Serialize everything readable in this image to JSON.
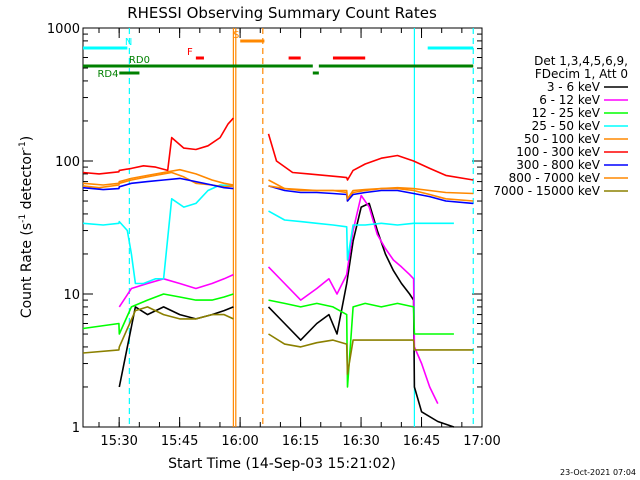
{
  "chart_data": {
    "type": "line",
    "title": "RHESSI Observing Summary Count Rates",
    "xlabel": "Start Time (14-Sep-03 15:21:02)",
    "ylabel_parts": [
      "Count Rate (s",
      "-1",
      " detector",
      "-1",
      ")"
    ],
    "x_range_minutes": [
      0,
      98.97
    ],
    "x_ticks": [
      {
        "label": "15:30",
        "t": 8.97
      },
      {
        "label": "15:45",
        "t": 23.97
      },
      {
        "label": "16:00",
        "t": 38.97
      },
      {
        "label": "16:15",
        "t": 53.97
      },
      {
        "label": "16:30",
        "t": 68.97
      },
      {
        "label": "16:45",
        "t": 83.97
      },
      {
        "label": "17:00",
        "t": 98.97
      }
    ],
    "y_scale": "log",
    "ylim": [
      1,
      1000
    ],
    "y_ticks": [
      {
        "label": "1",
        "v": 1
      },
      {
        "label": "10",
        "v": 10
      },
      {
        "label": "100",
        "v": 100
      },
      {
        "label": "1000",
        "v": 1000
      }
    ],
    "legend_header": [
      "Det 1,3,4,5,6,9,",
      "FDecim 1, Att 0"
    ],
    "series": [
      {
        "name": "3 - 6 keV",
        "color": "#000000",
        "x": [
          0,
          8.9,
          9,
          13,
          16,
          20,
          24,
          28,
          32,
          35,
          37.3,
          37.5,
          45.5,
          46,
          50,
          54,
          58,
          61,
          63,
          65.4,
          67,
          69,
          71,
          73,
          75,
          77,
          79,
          81,
          82,
          82.2,
          84,
          88,
          92,
          96.8
        ],
        "y": [
          null,
          null,
          2,
          8,
          7,
          8,
          7,
          6.5,
          7,
          7.5,
          8,
          null,
          null,
          8,
          6,
          4.5,
          6,
          7,
          5,
          12,
          25,
          45,
          48,
          30,
          20,
          15,
          12,
          10,
          9,
          2,
          1.3,
          1.1,
          1,
          null
        ]
      },
      {
        "name": "6 - 12 keV",
        "color": "#ff00ff",
        "x": [
          0,
          8.9,
          9,
          12,
          16,
          20,
          24,
          28,
          32,
          35,
          37.3,
          37.5,
          45.5,
          46,
          50,
          54,
          58,
          61,
          63,
          65.4,
          67,
          69,
          71,
          73,
          75,
          77,
          79,
          81,
          82,
          82.2,
          84,
          86,
          88,
          96.8
        ],
        "y": [
          null,
          null,
          8,
          11,
          12,
          13,
          12,
          11,
          12,
          13,
          14,
          null,
          null,
          16,
          12,
          9,
          11,
          13,
          10,
          14,
          30,
          55,
          45,
          28,
          22,
          18,
          16,
          14,
          13,
          4,
          3,
          2,
          1.5,
          null
        ]
      },
      {
        "name": "12 - 25 keV",
        "color": "#00ff00",
        "x": [
          0,
          8.9,
          9,
          12,
          16,
          20,
          24,
          28,
          32,
          35,
          37.3,
          37.5,
          45.5,
          46,
          50,
          54,
          58,
          62,
          65.4,
          65.6,
          67,
          70,
          74,
          78,
          82,
          82.2,
          84,
          88,
          92,
          96.8
        ],
        "y": [
          5.5,
          6,
          5,
          8,
          9,
          10,
          9.5,
          9,
          9,
          9.5,
          10,
          null,
          null,
          9,
          8.5,
          8,
          8.5,
          8,
          7,
          2,
          8,
          8.5,
          8,
          8.5,
          8,
          5,
          5,
          5,
          5,
          null
        ]
      },
      {
        "name": "25 - 50 keV",
        "color": "#00ffff",
        "x": [
          0,
          5,
          8.9,
          9,
          11,
          12,
          13,
          14,
          15,
          18,
          20,
          22,
          25,
          28,
          31,
          34,
          37.3,
          37.5,
          45.5,
          46,
          50,
          54,
          58,
          62,
          65.4,
          65.6,
          67,
          70,
          74,
          78,
          82,
          82.2,
          84,
          88,
          92,
          96.8
        ],
        "y": [
          34,
          33,
          34,
          35,
          30,
          20,
          12,
          12,
          12,
          13,
          13,
          52,
          45,
          48,
          60,
          66,
          65,
          null,
          null,
          42,
          36,
          35,
          34,
          33,
          32,
          18,
          33,
          33,
          34,
          33,
          34,
          34,
          34,
          34,
          34,
          null
        ]
      },
      {
        "name": "50 - 100 keV",
        "color": "#ff8800",
        "x": [
          0,
          4,
          8.9,
          9,
          12,
          15,
          18,
          22,
          25,
          28,
          32,
          35,
          37.3,
          37.5,
          45.5,
          46,
          50,
          54,
          58,
          62,
          65.4,
          65.6,
          67,
          70,
          74,
          78,
          82,
          86,
          90,
          96.8
        ],
        "y": [
          65,
          63,
          66,
          68,
          72,
          75,
          78,
          82,
          76,
          68,
          66,
          64,
          65,
          null,
          null,
          72,
          62,
          60,
          60,
          60,
          58,
          50,
          58,
          60,
          62,
          63,
          62,
          60,
          58,
          57
        ]
      },
      {
        "name": "100 - 300 keV",
        "color": "#ff0000",
        "x": [
          0,
          4,
          8.9,
          9,
          12,
          15,
          18,
          21,
          22,
          25,
          28,
          31,
          34,
          36,
          37.3,
          37.5,
          45.5,
          46,
          48,
          52,
          56,
          60,
          64,
          65.4,
          65.6,
          67,
          70,
          74,
          78,
          82,
          86,
          90,
          96.8
        ],
        "y": [
          82,
          80,
          83,
          85,
          88,
          92,
          90,
          85,
          150,
          125,
          122,
          130,
          150,
          190,
          210,
          null,
          null,
          160,
          100,
          82,
          80,
          78,
          76,
          75,
          72,
          85,
          95,
          105,
          110,
          100,
          88,
          78,
          72
        ]
      },
      {
        "name": "300 - 800 keV",
        "color": "#0000ff",
        "x": [
          0,
          5,
          8.9,
          9,
          12,
          16,
          20,
          24,
          28,
          32,
          35,
          37.3,
          37.5,
          45.5,
          46,
          50,
          54,
          58,
          62,
          65.4,
          65.6,
          67,
          70,
          74,
          78,
          82,
          86,
          90,
          96.8
        ],
        "y": [
          63,
          61,
          62,
          64,
          68,
          70,
          72,
          74,
          70,
          66,
          63,
          62,
          null,
          null,
          65,
          60,
          58,
          58,
          57,
          56,
          50,
          56,
          58,
          60,
          60,
          57,
          54,
          50,
          48
        ]
      },
      {
        "name": "800 - 7000 keV",
        "color": "#ff8800",
        "x": [
          0,
          5,
          8.9,
          9,
          12,
          16,
          20,
          24,
          28,
          32,
          35,
          37.3,
          37.5,
          45.5,
          46,
          50,
          54,
          58,
          62,
          65.4,
          65.6,
          67,
          70,
          74,
          78,
          82,
          86,
          90,
          96.8
        ],
        "y": [
          68,
          66,
          68,
          70,
          74,
          78,
          82,
          86,
          80,
          72,
          68,
          66,
          null,
          null,
          65,
          62,
          61,
          60,
          60,
          60,
          52,
          60,
          61,
          62,
          62,
          60,
          56,
          52,
          50
        ]
      },
      {
        "name": "7000 - 15000 keV",
        "color": "#8b8000",
        "x": [
          0,
          8.9,
          9,
          13,
          16,
          20,
          24,
          28,
          32,
          35,
          37.3,
          37.5,
          45.5,
          46,
          50,
          54,
          58,
          62,
          65.4,
          65.6,
          67,
          70,
          74,
          78,
          82,
          82.2,
          86,
          90,
          96.8
        ],
        "y": [
          3.6,
          3.8,
          4,
          7.5,
          8,
          7,
          6.5,
          6.5,
          7,
          7,
          6.5,
          null,
          null,
          5,
          4.2,
          4,
          4.3,
          4.5,
          4.2,
          2.5,
          4.5,
          4.5,
          4.5,
          4.5,
          4.5,
          3.8,
          3.8,
          3.8,
          3.8
        ]
      }
    ],
    "annotations": [
      {
        "label": "N",
        "color": "#00ffff",
        "segments": [
          [
            0,
            11
          ],
          [
            85.5,
            96.8
          ]
        ]
      },
      {
        "label": "S",
        "color": "#ff8800",
        "segments": [
          [
            39,
            45
          ]
        ]
      },
      {
        "label": "F",
        "color": "#ff0000",
        "segments": [
          [
            28,
            30
          ],
          [
            51,
            54
          ],
          [
            62,
            70
          ]
        ]
      },
      {
        "label": "RD0",
        "color": "#008000",
        "segments": [
          [
            0,
            57
          ],
          [
            58.5,
            96.8
          ]
        ]
      },
      {
        "label": "RD4",
        "color": "#008000",
        "segments": [
          [
            9,
            14
          ],
          [
            57,
            58.5
          ]
        ]
      }
    ],
    "vertical_markers": [
      {
        "t": 11.5,
        "color": "#00ffff",
        "style": "dashed"
      },
      {
        "t": 37.3,
        "color": "#ff8800",
        "style": "solid"
      },
      {
        "t": 37.9,
        "color": "#ff8800",
        "style": "solid"
      },
      {
        "t": 44.6,
        "color": "#ff8800",
        "style": "dashed"
      },
      {
        "t": 82.2,
        "color": "#00ffff",
        "style": "solid"
      },
      {
        "t": 96.8,
        "color": "#00ffff",
        "style": "dashed"
      }
    ]
  },
  "footer": {
    "timestamp": "23-Oct-2021 07:04"
  }
}
